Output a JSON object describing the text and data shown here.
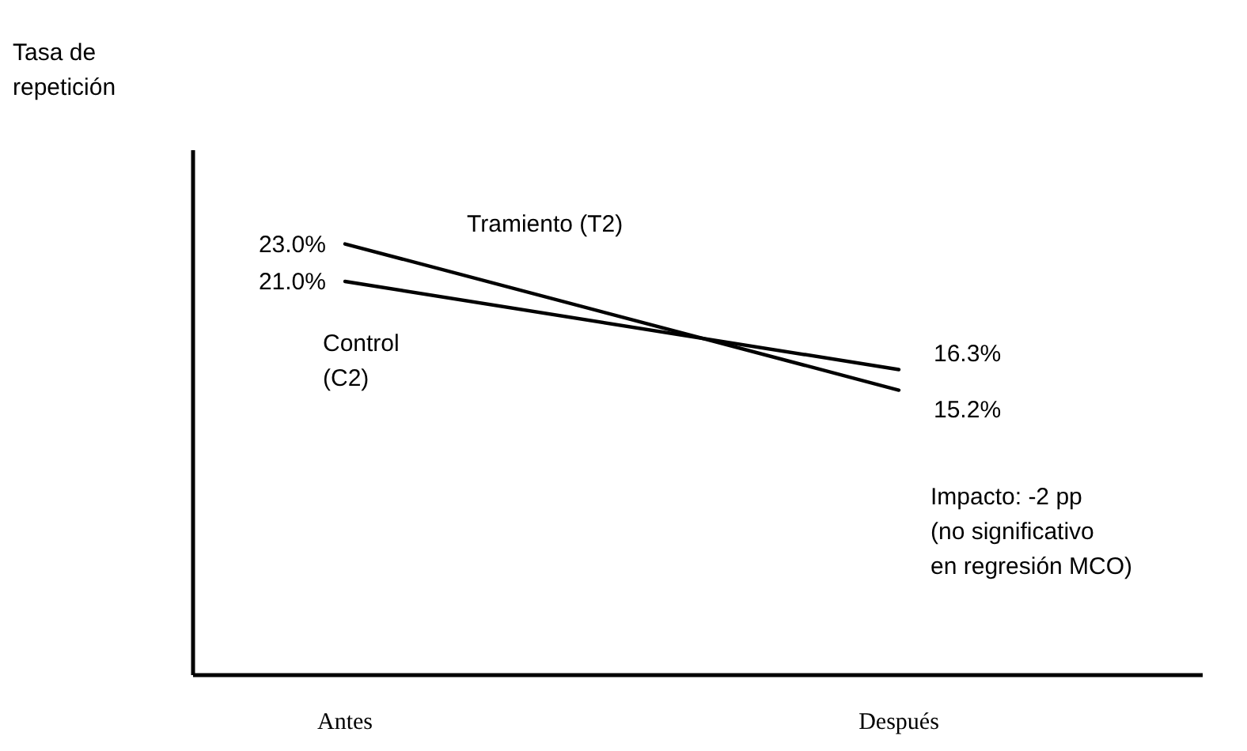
{
  "chart_data": {
    "type": "line",
    "ylabel": "Tasa de repetición",
    "categories": [
      "Antes",
      "Después"
    ],
    "series": [
      {
        "name": "Tramiento (T2)",
        "color": "#000000",
        "values": [
          23.0,
          15.2
        ],
        "value_labels": [
          "23.0%",
          "15.2%"
        ]
      },
      {
        "name": "Control\n(C2)",
        "color": "#000000",
        "values": [
          21.0,
          16.3
        ],
        "value_labels": [
          "21.0%",
          "16.3%"
        ]
      }
    ],
    "ylim": [
      0,
      28
    ],
    "tick_labels": "x",
    "marker": "none",
    "line_style": "solid",
    "annotations": [
      "Impacto: -2 pp\n(no significativo\nen regresión MCO)"
    ]
  }
}
